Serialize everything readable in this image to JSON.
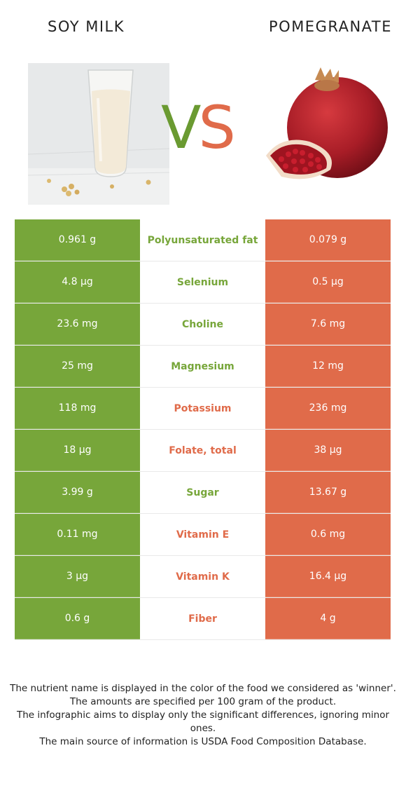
{
  "left_food": {
    "name": "SOY MILK",
    "color": "#77a63a"
  },
  "right_food": {
    "name": "POMEGRANATE",
    "color": "#e06b4a"
  },
  "vs": {
    "v": "V",
    "s": "S"
  },
  "rows": [
    {
      "left": "0.961 g",
      "nutrient": "Polyunsaturated fat",
      "right": "0.079 g",
      "winner": "left"
    },
    {
      "left": "4.8 µg",
      "nutrient": "Selenium",
      "right": "0.5 µg",
      "winner": "left"
    },
    {
      "left": "23.6 mg",
      "nutrient": "Choline",
      "right": "7.6 mg",
      "winner": "left"
    },
    {
      "left": "25 mg",
      "nutrient": "Magnesium",
      "right": "12 mg",
      "winner": "left"
    },
    {
      "left": "118 mg",
      "nutrient": "Potassium",
      "right": "236 mg",
      "winner": "right"
    },
    {
      "left": "18 µg",
      "nutrient": "Folate, total",
      "right": "38 µg",
      "winner": "right"
    },
    {
      "left": "3.99 g",
      "nutrient": "Sugar",
      "right": "13.67 g",
      "winner": "left"
    },
    {
      "left": "0.11 mg",
      "nutrient": "Vitamin E",
      "right": "0.6 mg",
      "winner": "right"
    },
    {
      "left": "3 µg",
      "nutrient": "Vitamin K",
      "right": "16.4 µg",
      "winner": "right"
    },
    {
      "left": "0.6 g",
      "nutrient": "Fiber",
      "right": "4 g",
      "winner": "right"
    }
  ],
  "notes": [
    "The nutrient name is displayed in the color of the food we considered as 'winner'.",
    "The amounts are specified per 100 gram of the product.",
    "The infographic aims to display only the significant differences, ignoring minor ones.",
    "The main source of information is USDA Food Composition Database."
  ]
}
